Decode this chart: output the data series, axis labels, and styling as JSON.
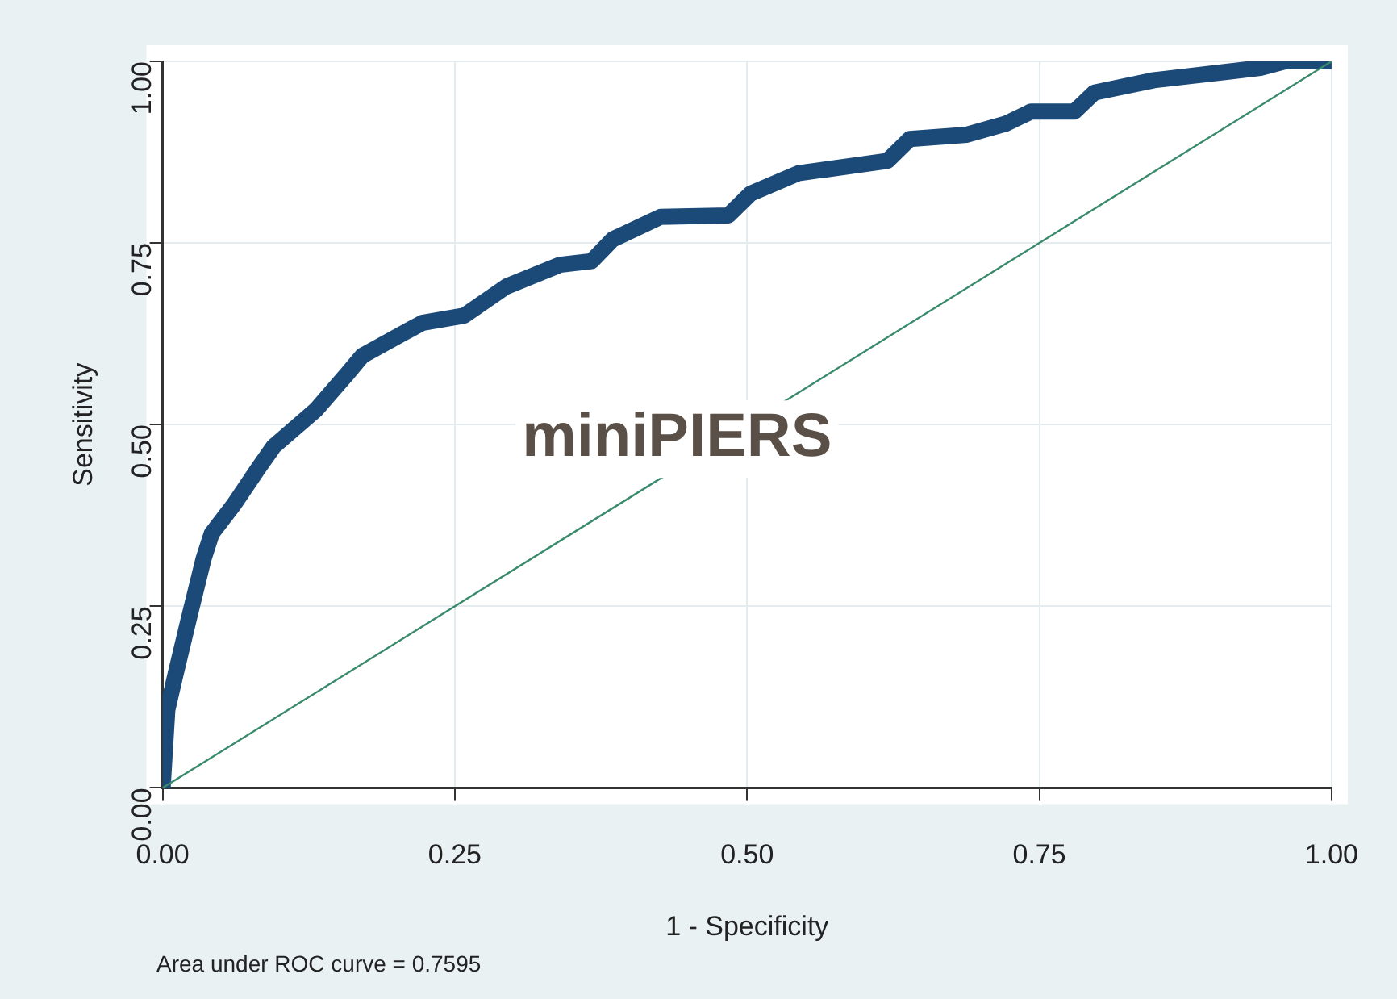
{
  "chart_data": {
    "type": "line",
    "xlabel": "1 - Specificity",
    "ylabel": "Sensitivity",
    "xlim": [
      0,
      1
    ],
    "ylim": [
      0,
      1
    ],
    "xticks": [
      {
        "value": 0,
        "label": "0.00"
      },
      {
        "value": 0.25,
        "label": "0.25"
      },
      {
        "value": 0.5,
        "label": "0.50"
      },
      {
        "value": 0.75,
        "label": "0.75"
      },
      {
        "value": 1,
        "label": "1.00"
      }
    ],
    "yticks": [
      {
        "value": 0,
        "label": "0.00"
      },
      {
        "value": 0.25,
        "label": "0.25"
      },
      {
        "value": 0.5,
        "label": "0.50"
      },
      {
        "value": 0.75,
        "label": "0.75"
      },
      {
        "value": 1,
        "label": "1.00"
      }
    ],
    "grid": true,
    "legend": false,
    "marker": "none",
    "line_style": "solid",
    "series": [
      {
        "color": "#1c4a78",
        "x": [
          0,
          0.004,
          0.011,
          0.022,
          0.035,
          0.042,
          0.061,
          0.082,
          0.095,
          0.131,
          0.158,
          0.171,
          0.222,
          0.258,
          0.294,
          0.34,
          0.367,
          0.385,
          0.426,
          0.484,
          0.503,
          0.544,
          0.62,
          0.639,
          0.688,
          0.721,
          0.743,
          0.78,
          0.797,
          0.848,
          0.939,
          0.96,
          1
        ],
        "values": [
          0,
          0.107,
          0.156,
          0.23,
          0.315,
          0.35,
          0.39,
          0.44,
          0.47,
          0.52,
          0.57,
          0.595,
          0.64,
          0.65,
          0.69,
          0.72,
          0.725,
          0.755,
          0.786,
          0.788,
          0.818,
          0.846,
          0.863,
          0.893,
          0.899,
          0.914,
          0.931,
          0.931,
          0.957,
          0.974,
          0.991,
          1,
          1
        ]
      },
      {
        "color": "#3a8a6c",
        "x": [
          0,
          1
        ],
        "values": [
          0,
          1
        ]
      }
    ],
    "annotations": [
      "miniPIERS",
      "Area under ROC curve = 0.7595"
    ]
  }
}
